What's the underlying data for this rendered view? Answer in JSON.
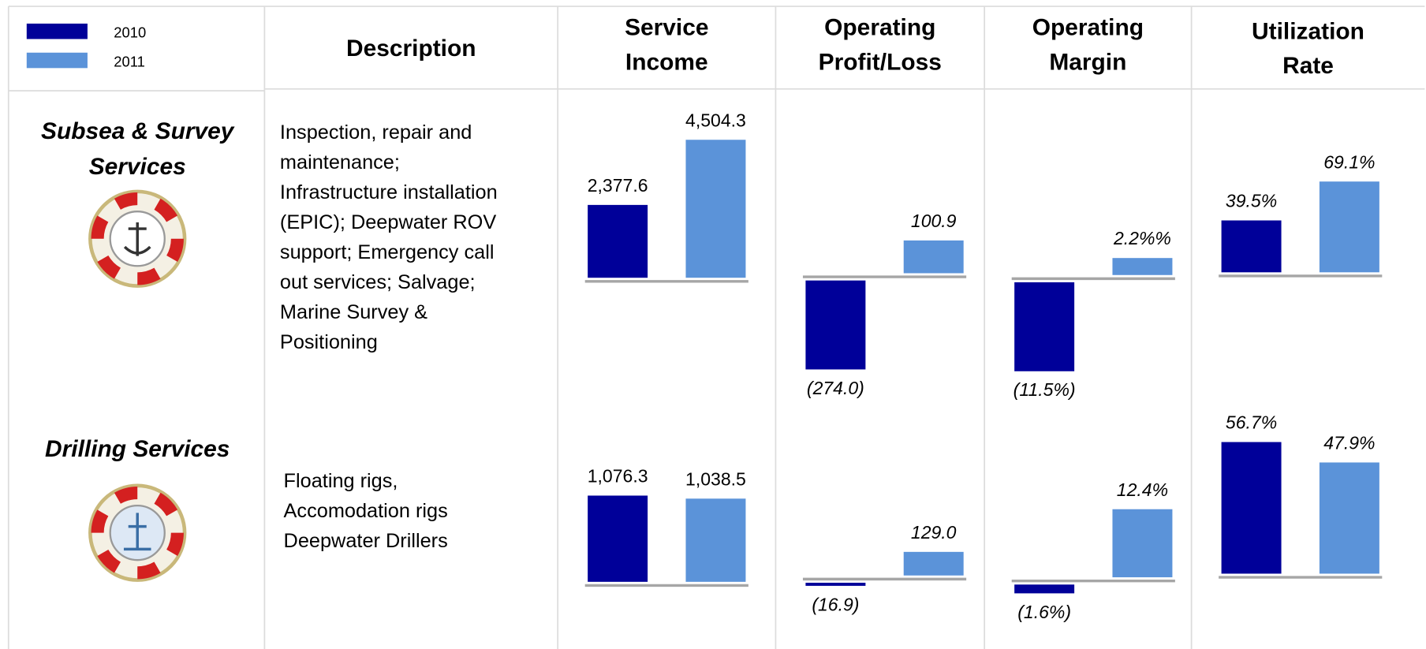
{
  "legend": [
    {
      "name": "2010",
      "color": "#000099"
    },
    {
      "name": "2011",
      "color": "#5b93d9"
    }
  ],
  "headers": [
    [
      "Description"
    ],
    [
      "Service",
      "Income"
    ],
    [
      "Operating",
      "Profit/Loss"
    ],
    [
      "Operating",
      "Margin"
    ],
    [
      "Utilization",
      "Rate"
    ]
  ],
  "rows": [
    {
      "segment": [
        "Subsea & Survey",
        "Services"
      ],
      "description": [
        "Inspection, repair and",
        "maintenance;",
        "Infrastructure installation",
        "(EPIC); Deepwater ROV",
        "support; Emergency call",
        "out services; Salvage;",
        "Marine Survey &",
        "Positioning"
      ],
      "metrics": [
        {
          "values": [
            2377.6,
            4504.3
          ],
          "value_labels": [
            "2,377.6",
            "4,504.3"
          ]
        },
        {
          "values": [
            -274.0,
            100.9
          ],
          "value_labels": [
            "(274.0)",
            "100.9"
          ]
        },
        {
          "values": [
            -11.5,
            2.2
          ],
          "value_labels": [
            "(11.5%)",
            "2.2%%"
          ]
        },
        {
          "values": [
            39.5,
            69.1
          ],
          "value_labels": [
            "39.5%",
            "69.1%"
          ]
        }
      ]
    },
    {
      "segment": [
        "Drilling Services"
      ],
      "description": [
        "Floating rigs,",
        "Accomodation rigs",
        "Deepwater Drillers"
      ],
      "metrics": [
        {
          "values": [
            1076.3,
            1038.5
          ],
          "value_labels": [
            "1,076.3",
            "1,038.5"
          ]
        },
        {
          "values": [
            -16.9,
            129.0
          ],
          "value_labels": [
            "(16.9)",
            "129.0"
          ]
        },
        {
          "values": [
            -1.6,
            12.4
          ],
          "value_labels": [
            "(1.6%)",
            "12.4%"
          ]
        },
        {
          "values": [
            56.7,
            47.9
          ],
          "value_labels": [
            "56.7%",
            "47.9%"
          ]
        }
      ]
    }
  ]
}
